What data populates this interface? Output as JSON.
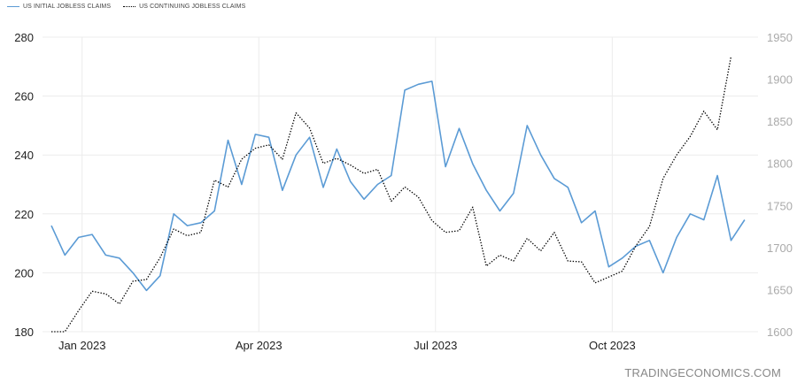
{
  "legend": {
    "initial": "US INITIAL JOBLESS CLAIMS",
    "continuing": "US CONTINUING JOBLESS CLAIMS"
  },
  "watermark": "TRADINGECONOMICS.COM",
  "colors": {
    "initial": "#5b9bd5",
    "continuing": "#000000",
    "grid": "#ececec"
  },
  "chart_data": {
    "type": "line",
    "x_ticks": [
      "Jan 2023",
      "Apr 2023",
      "Jul 2023",
      "Oct 2023"
    ],
    "x_tick_week_index": [
      2,
      15,
      28,
      41
    ],
    "y_left": {
      "ticks": [
        180,
        200,
        220,
        240,
        260,
        280
      ],
      "range": [
        180,
        280
      ]
    },
    "y_right": {
      "ticks": [
        1600,
        1650,
        1700,
        1750,
        1800,
        1850,
        1900,
        1950
      ],
      "range": [
        1600,
        1950
      ]
    },
    "legend_position": "top-left",
    "grid": true,
    "series": [
      {
        "name": "US INITIAL JOBLESS CLAIMS",
        "axis": "left",
        "style": "solid",
        "values": [
          216,
          206,
          212,
          213,
          206,
          205,
          200,
          194,
          199,
          220,
          216,
          217,
          221,
          245,
          230,
          247,
          246,
          228,
          240,
          246,
          229,
          242,
          231,
          225,
          230,
          233,
          262,
          264,
          265,
          236,
          249,
          237,
          228,
          221,
          227,
          250,
          240,
          232,
          229,
          217,
          221,
          202,
          205,
          209,
          211,
          200,
          212,
          220,
          218,
          233,
          211,
          218
        ]
      },
      {
        "name": "US CONTINUING JOBLESS CLAIMS",
        "axis": "right",
        "style": "dotted",
        "values": [
          1600,
          1600,
          1625,
          1648,
          1645,
          1633,
          1660,
          1662,
          1688,
          1722,
          1714,
          1718,
          1780,
          1772,
          1805,
          1818,
          1822,
          1805,
          1860,
          1842,
          1800,
          1806,
          1798,
          1788,
          1793,
          1755,
          1772,
          1760,
          1732,
          1718,
          1720,
          1748,
          1678,
          1691,
          1684,
          1711,
          1696,
          1718,
          1684,
          1683,
          1658,
          1665,
          1672,
          1702,
          1725,
          1782,
          1810,
          1832,
          1862,
          1840,
          1927
        ]
      }
    ]
  }
}
